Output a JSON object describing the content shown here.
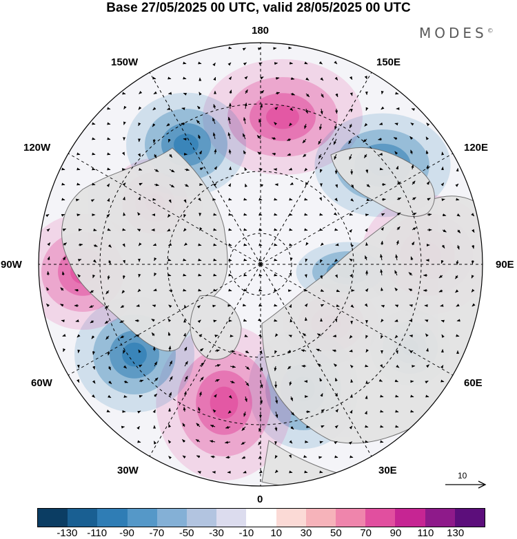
{
  "title": "Base 27/05/2025 00 UTC, valid 28/05/2025 00 UTC",
  "brand": {
    "name": "MODES",
    "mark": "©"
  },
  "longitude_labels": {
    "n180": "180",
    "e150": "150E",
    "e120": "120E",
    "e90": "90E",
    "e60": "60E",
    "e30": "30E",
    "z0": "0",
    "w30": "30W",
    "w60": "60W",
    "w90": "90W",
    "w120": "120W",
    "w150": "150W"
  },
  "reference_vector": {
    "label": "10"
  },
  "colorbar": {
    "colors": [
      "#0b3d63",
      "#195f92",
      "#2f7db5",
      "#5598c8",
      "#84b0d6",
      "#b2c4e0",
      "#dcdcee",
      "#ffffff",
      "#fbdad6",
      "#f6b3ba",
      "#ef85ac",
      "#e14f9f",
      "#c62593",
      "#8e1a8a",
      "#5c0e7b"
    ],
    "ticks": [
      "-130",
      "-110",
      "-90",
      "-70",
      "-50",
      "-30",
      "-10",
      "10",
      "30",
      "50",
      "70",
      "90",
      "110",
      "130"
    ]
  },
  "anomaly_colors": {
    "negative": "#2f7db5",
    "positive": "#e14f9f",
    "land": "#e5e5e5"
  }
}
